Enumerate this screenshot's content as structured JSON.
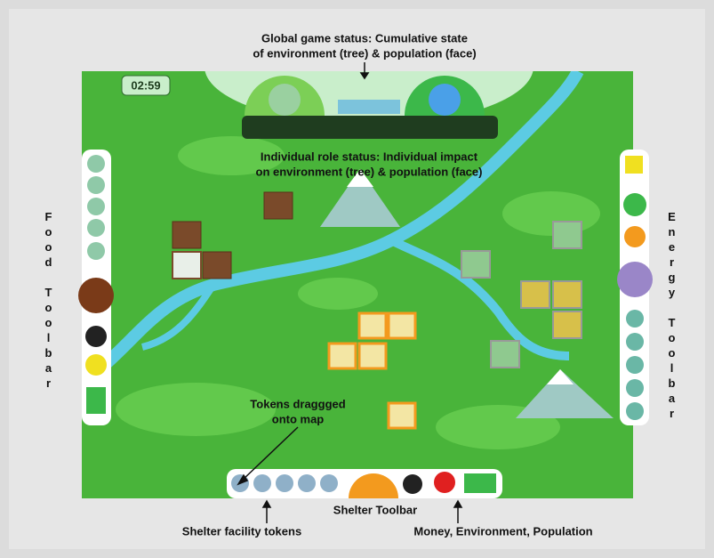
{
  "timer": "02:59",
  "annotations": {
    "global_status": [
      "Global game status: Cumulative state",
      "of environment (tree) & population (face)"
    ],
    "individual_status": [
      "Individual role status: Individual impact",
      "on environment (tree) & population (face)"
    ],
    "tokens_dragged": [
      "Tokens draggged",
      "onto map"
    ],
    "food_toolbar": "Food Toolbar",
    "energy_toolbar": "Energy Toolbar",
    "shelter_toolbar": "Shelter Toolbar",
    "shelter_tokens": "Shelter facility tokens",
    "resources": "Money, Environment, Population"
  }
}
